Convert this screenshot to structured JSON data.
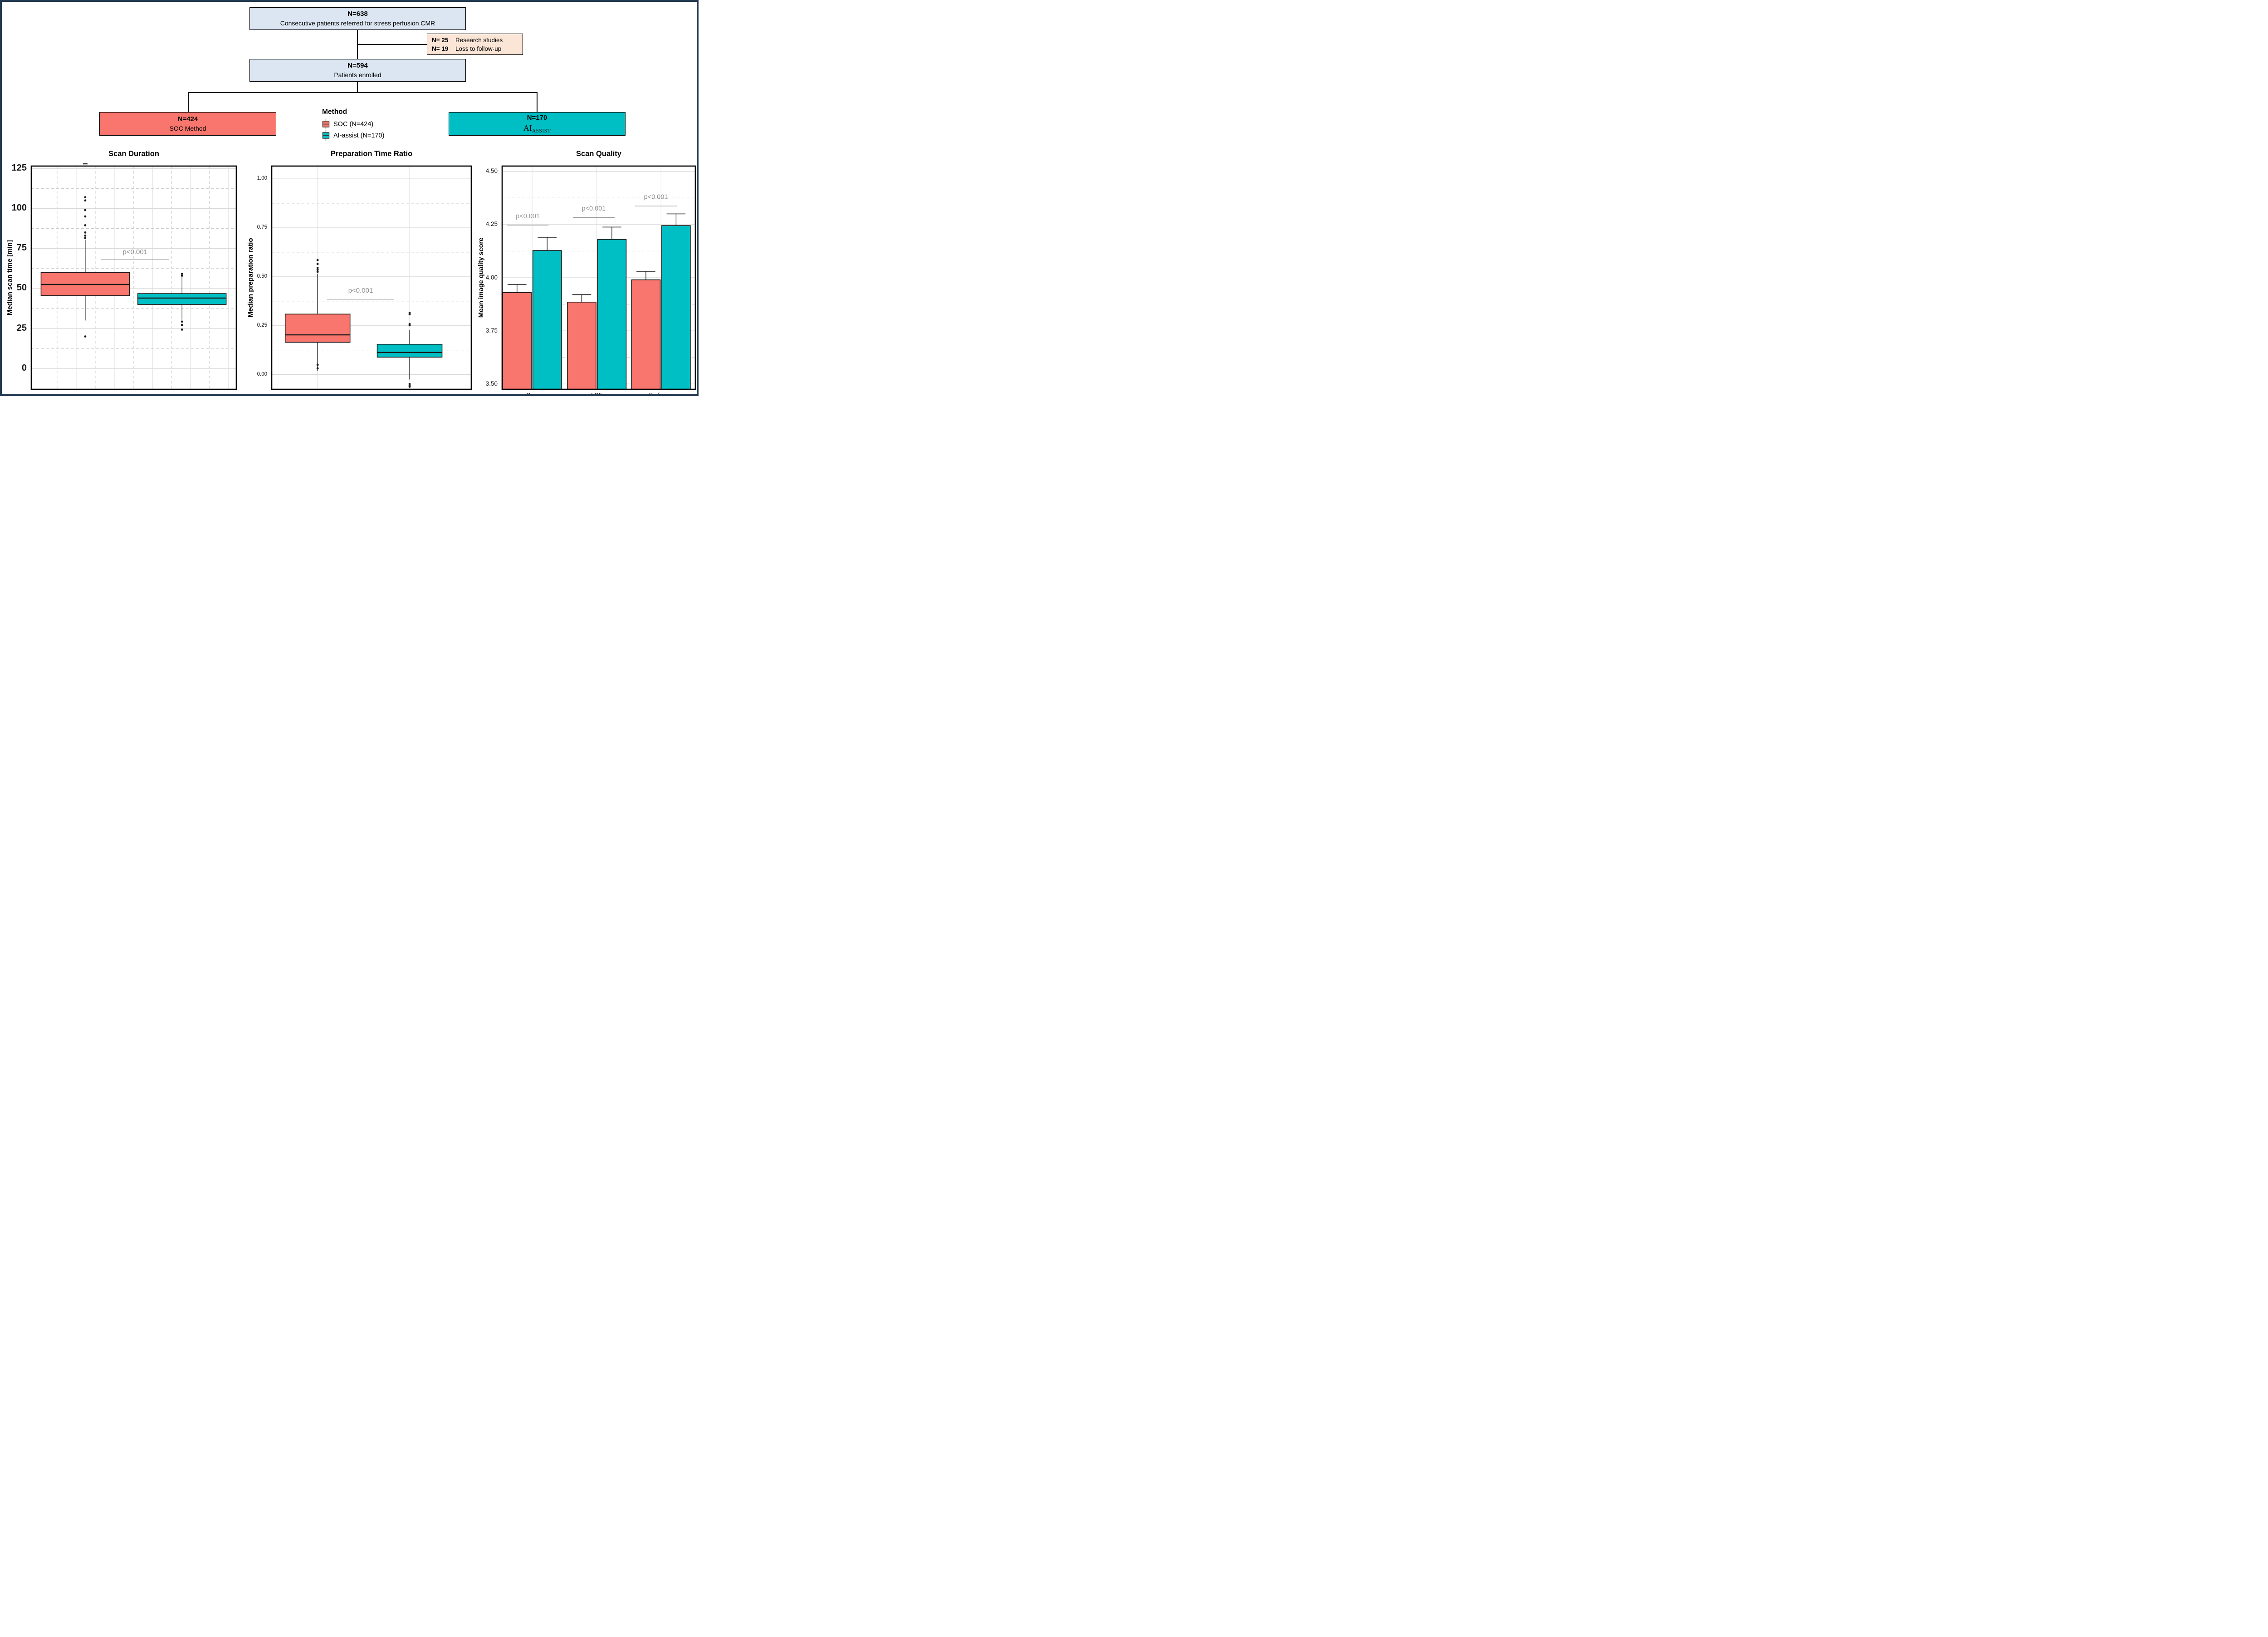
{
  "figure": {
    "border_color": "#23394F",
    "background": "#FFFFFF"
  },
  "flowchart": {
    "box_top": {
      "n": "N=638",
      "label": "Consecutive patients referred for stress perfusion CMR"
    },
    "box_excluded": {
      "rows": [
        {
          "n": "N= 25",
          "label": "Research studies"
        },
        {
          "n": "N= 19",
          "label": "Loss to follow-up"
        }
      ]
    },
    "box_enrolled": {
      "n": "N=594",
      "label": "Patients enrolled"
    },
    "box_soc": {
      "n": "N=424",
      "label": "SOC Method",
      "color": "#F8766D"
    },
    "box_ai": {
      "n": "N=170",
      "label_main": "AI",
      "label_sub": "ASSIST",
      "color": "#00BFC4"
    },
    "colors": {
      "info_fill": "#DCE6F2",
      "excl_fill": "#FBE5D6"
    }
  },
  "legend": {
    "title": "Method",
    "items": [
      {
        "label": "SOC (N=424)",
        "color": "#F8766D"
      },
      {
        "label": "AI-assist (N=170)",
        "color": "#00BFC4"
      }
    ]
  },
  "chart_data": [
    {
      "type": "boxplot",
      "title": "Scan Duration",
      "ylabel": "Median scan time [min]",
      "ylim": [
        -13,
        126.5
      ],
      "yticks": [
        0,
        25,
        50,
        75,
        100,
        125
      ],
      "ytick_labels": [
        "0",
        "25",
        "50",
        "75",
        "100",
        "125"
      ],
      "yticks_minor": [
        12.5,
        37.5,
        62.5,
        87.5,
        112.5
      ],
      "vgrid": [
        {
          "x": 0.126,
          "dash": true
        },
        {
          "x": 0.219,
          "dash": false
        },
        {
          "x": 0.312,
          "dash": true
        },
        {
          "x": 0.405,
          "dash": false
        },
        {
          "x": 0.498,
          "dash": true
        },
        {
          "x": 0.591,
          "dash": false
        },
        {
          "x": 0.684,
          "dash": true
        },
        {
          "x": 0.777,
          "dash": false
        },
        {
          "x": 0.869,
          "dash": true
        },
        {
          "x": 0.962,
          "dash": false
        }
      ],
      "series": [
        {
          "name": "SOC",
          "color": "#F8766D",
          "center": 0.263,
          "width": 0.431,
          "q1": 45.5,
          "median": 52.5,
          "q3": 60,
          "whisker_low": 30,
          "whisker_high": 80.5,
          "outliers_high": [
            81.5,
            83,
            85,
            89.5,
            95,
            99,
            105,
            107
          ],
          "outliers_low": [
            20
          ],
          "clipped_marker": true
        },
        {
          "name": "AI-assist",
          "color": "#00BFC4",
          "center": 0.735,
          "width": 0.431,
          "q1": 40,
          "median": 44,
          "q3": 46.8,
          "whisker_low": 30.5,
          "whisker_high": 57,
          "outliers_high": [
            58,
            59.2
          ],
          "outliers_low": [
            24.3,
            27.2,
            29.3
          ]
        }
      ],
      "annotations": [
        {
          "label": "p<0.001",
          "x1": 0.34,
          "x2": 0.672,
          "y_line": 68,
          "y_text": 71.5
        }
      ]
    },
    {
      "type": "boxplot",
      "title": "Preparation Time Ratio",
      "ylabel": "Median  preparation ratio",
      "ylim": [
        -0.075,
        1.065
      ],
      "yticks": [
        0,
        0.25,
        0.5,
        0.75,
        1.0
      ],
      "ytick_labels": [
        "0.00",
        "0.25",
        "0.50",
        "0.75",
        "1.00"
      ],
      "yticks_minor": [
        0.125,
        0.375,
        0.625,
        0.875
      ],
      "vgrid": [
        {
          "x": 0.23,
          "dash": false
        },
        {
          "x": 0.691,
          "dash": false
        }
      ],
      "series": [
        {
          "name": "SOC",
          "color": "#F8766D",
          "center": 0.23,
          "width": 0.325,
          "q1": 0.165,
          "median": 0.203,
          "q3": 0.309,
          "whisker_low": 0.02,
          "whisker_high": 0.515,
          "outliers_high": [
            0.525,
            0.535,
            0.545,
            0.565,
            0.585
          ],
          "outliers_low": [
            0.05,
            0.032
          ]
        },
        {
          "name": "AI-assist",
          "color": "#00BFC4",
          "center": 0.691,
          "width": 0.325,
          "q1": 0.089,
          "median": 0.113,
          "q3": 0.155,
          "whisker_low": -0.025,
          "whisker_high": 0.227,
          "outliers_high": [
            0.252,
            0.258,
            0.308,
            0.315
          ],
          "outliers_low": [
            -0.048,
            -0.054,
            -0.062
          ]
        }
      ],
      "annotations": [
        {
          "label": "p<0.001",
          "x1": 0.277,
          "x2": 0.614,
          "y_line": 0.385,
          "y_text": 0.418
        }
      ]
    },
    {
      "type": "bar",
      "title": "Scan Quality",
      "ylabel": "Mean image quality score",
      "categories": [
        "Cine",
        "LGE",
        "Perfusion"
      ],
      "category_centers": [
        0.155,
        0.49,
        0.822
      ],
      "bar_width": 0.148,
      "bar_gap": 0.004,
      "ylim": [
        3.475,
        4.525
      ],
      "yticks": [
        3.5,
        3.75,
        4.0,
        4.25,
        4.5
      ],
      "ytick_labels": [
        "3.50",
        "3.75",
        "4.00",
        "4.25",
        "4.50"
      ],
      "yticks_minor": [
        3.625,
        3.875,
        4.125,
        4.375
      ],
      "vgrid": [
        {
          "x": 0.155,
          "dash": false
        },
        {
          "x": 0.49,
          "dash": false
        },
        {
          "x": 0.822,
          "dash": false
        }
      ],
      "series": [
        {
          "name": "SOC",
          "color": "#F8766D",
          "values": [
            3.93,
            3.885,
            3.99
          ],
          "errors_high": [
            3.968,
            3.92,
            4.03
          ]
        },
        {
          "name": "AI-assist",
          "color": "#00BFC4",
          "values": [
            4.128,
            4.18,
            4.245
          ],
          "errors_high": [
            4.19,
            4.238,
            4.3
          ]
        }
      ],
      "annotations": [
        {
          "label": "p<0.001",
          "x1": 0.026,
          "x2": 0.24,
          "y_line": 4.247,
          "y_text": 4.28
        },
        {
          "label": "p<0.001",
          "x1": 0.366,
          "x2": 0.582,
          "y_line": 4.283,
          "y_text": 4.316
        },
        {
          "label": "p<0.001",
          "x1": 0.688,
          "x2": 0.904,
          "y_line": 4.337,
          "y_text": 4.37
        }
      ]
    }
  ]
}
